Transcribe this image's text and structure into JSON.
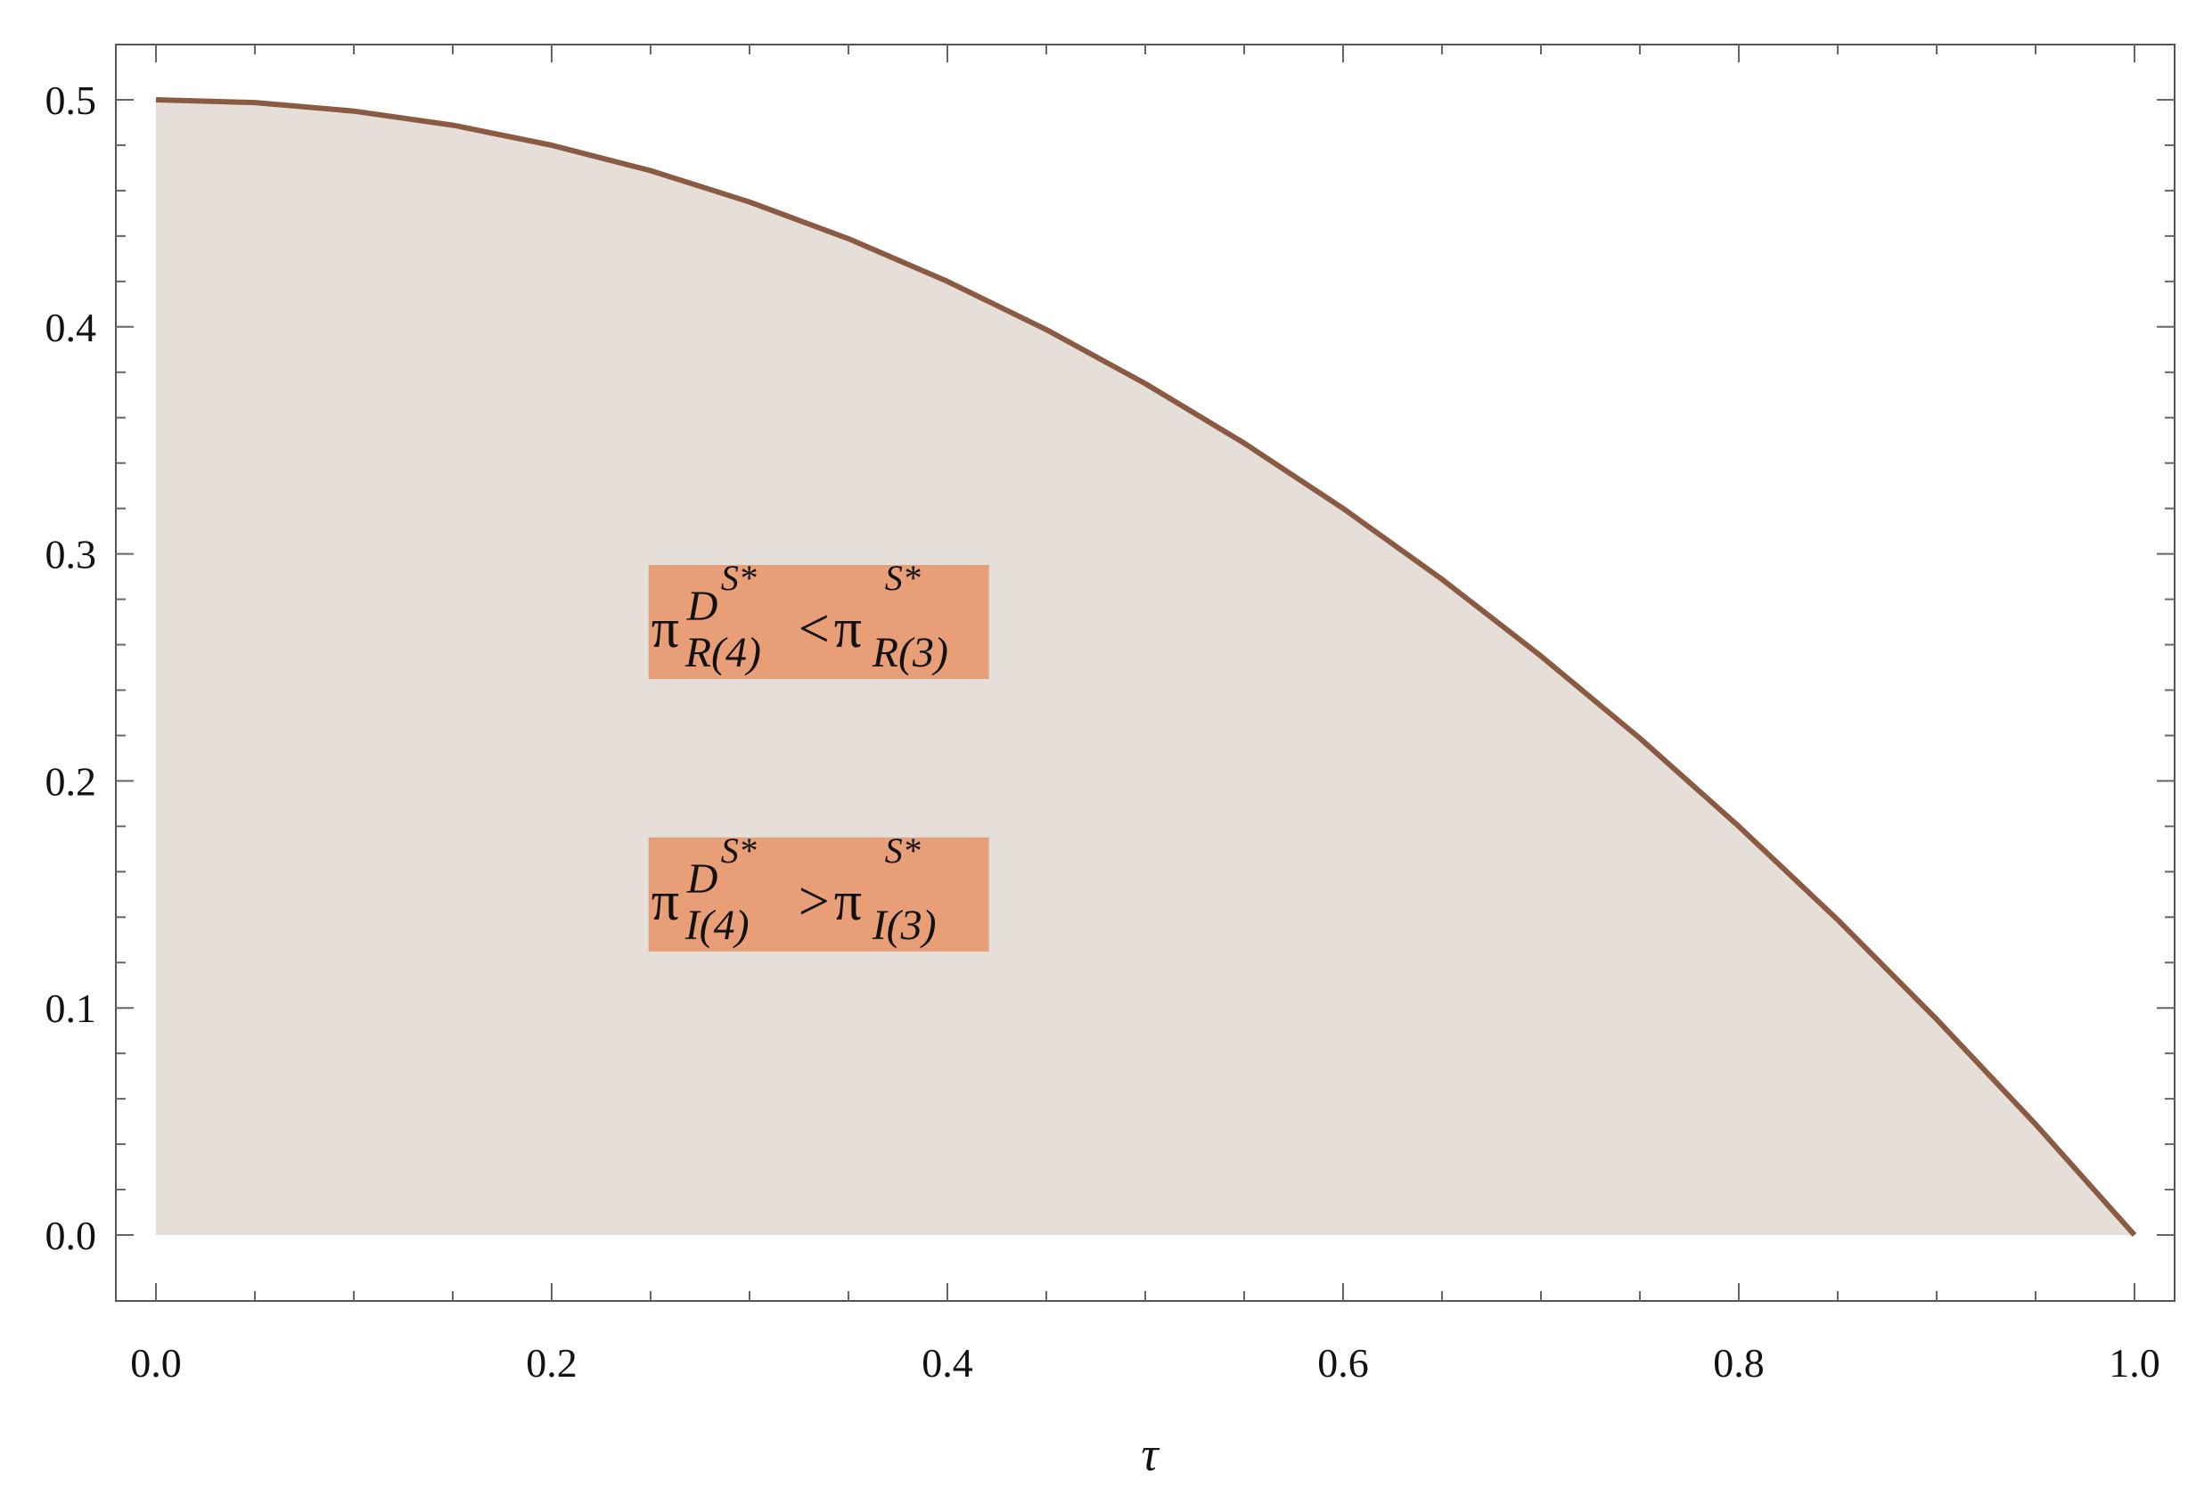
{
  "chart_data": {
    "type": "area",
    "xlabel": "τ",
    "ylabel": "",
    "xlim": [
      0.0,
      1.0
    ],
    "ylim": [
      0.0,
      0.5
    ],
    "x_ticks": [
      "0.0",
      "0.2",
      "0.4",
      "0.6",
      "0.8",
      "1.0"
    ],
    "y_ticks": [
      "0.0",
      "0.1",
      "0.2",
      "0.3",
      "0.4",
      "0.5"
    ],
    "grid": false,
    "series": [
      {
        "x": [
          0.0,
          0.05,
          0.1,
          0.15,
          0.2,
          0.25,
          0.3,
          0.35,
          0.4,
          0.45,
          0.5,
          0.55,
          0.6,
          0.65,
          0.7,
          0.75,
          0.8,
          0.85,
          0.9,
          0.95,
          1.0
        ],
        "y": [
          0.5,
          0.4988,
          0.495,
          0.4888,
          0.48,
          0.4688,
          0.455,
          0.4388,
          0.42,
          0.3988,
          0.375,
          0.3488,
          0.32,
          0.2888,
          0.255,
          0.2188,
          0.18,
          0.1388,
          0.095,
          0.0488,
          0.0
        ]
      }
    ],
    "fill_color": "#e5ded9",
    "line_color": "#8a5a42",
    "annotations": [
      {
        "label": "π R(4) D S* < π R(3) S*",
        "base_left": "π",
        "sub_left": "R(4)",
        "sup_left": "D",
        "supsup_left": "S*",
        "relation": "<",
        "base_right": "π",
        "sub_right": "R(3)",
        "sup_right": "S*",
        "anchor_x": 0.335,
        "anchor_y": 0.27,
        "box_color": "#e89f78"
      },
      {
        "label": "π I(4) D S* > π I(3) S*",
        "base_left": "π",
        "sub_left": "I(4)",
        "sup_left": "D",
        "supsup_left": "S*",
        "relation": ">",
        "base_right": "π",
        "sub_right": "I(3)",
        "sup_right": "S*",
        "anchor_x": 0.335,
        "anchor_y": 0.15,
        "box_color": "#e89f78"
      }
    ]
  }
}
